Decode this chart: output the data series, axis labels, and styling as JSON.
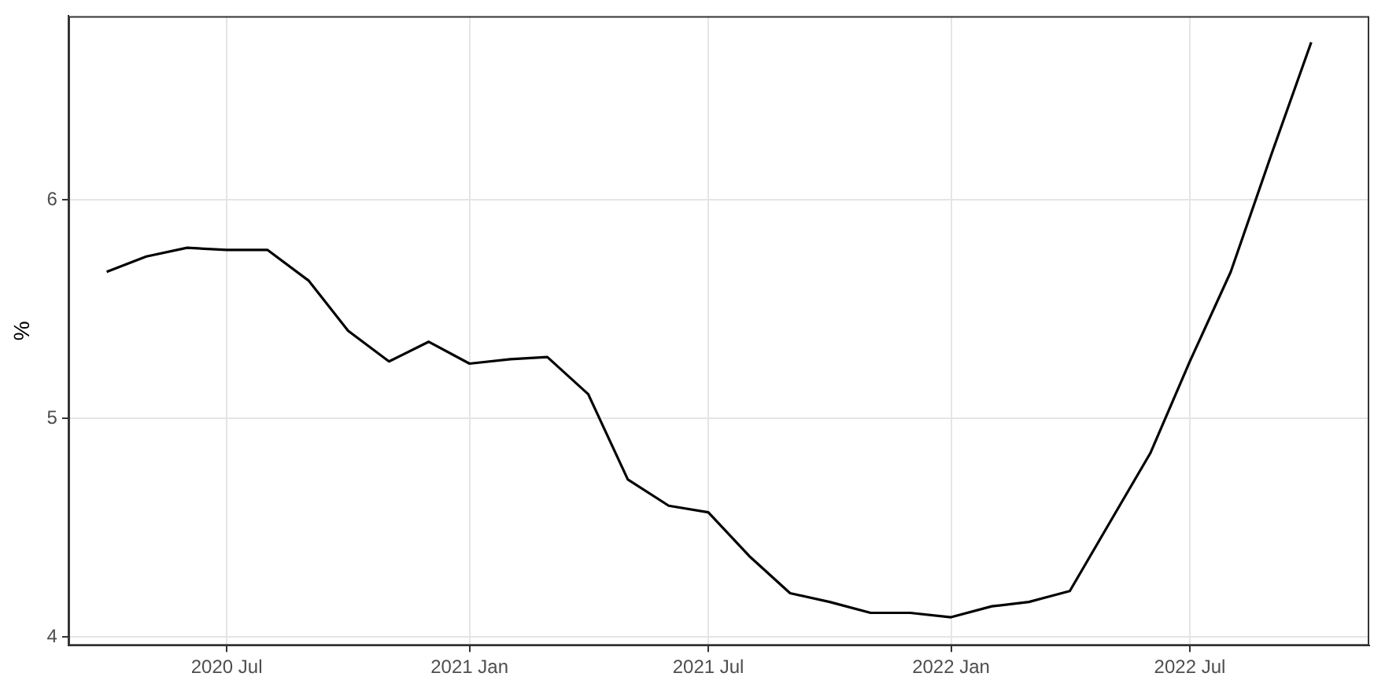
{
  "chart_data": {
    "type": "line",
    "ylabel": "%",
    "x": [
      "2020-04",
      "2020-05",
      "2020-06",
      "2020-07",
      "2020-08",
      "2020-09",
      "2020-10",
      "2020-11",
      "2020-12",
      "2021-01",
      "2021-02",
      "2021-03",
      "2021-04",
      "2021-05",
      "2021-06",
      "2021-07",
      "2021-08",
      "2021-09",
      "2021-10",
      "2021-11",
      "2021-12",
      "2022-01",
      "2022-02",
      "2022-03",
      "2022-04",
      "2022-05",
      "2022-06",
      "2022-07",
      "2022-08",
      "2022-09",
      "2022-10"
    ],
    "series": [
      {
        "color": "#000000",
        "values": [
          5.67,
          5.74,
          5.78,
          5.77,
          5.77,
          5.63,
          5.4,
          5.26,
          5.35,
          5.25,
          5.27,
          5.28,
          5.11,
          4.72,
          4.6,
          4.57,
          4.37,
          4.2,
          4.16,
          4.11,
          4.11,
          4.09,
          4.14,
          4.16,
          4.21,
          4.52,
          4.84,
          5.26,
          5.67,
          6.21,
          6.72
        ]
      }
    ],
    "xlim": [
      "2020-03-03",
      "2022-11-14"
    ],
    "xticks": [
      {
        "value": "2020-07",
        "label": "2020 Jul"
      },
      {
        "value": "2021-01",
        "label": "2021 Jan"
      },
      {
        "value": "2021-07",
        "label": "2021 Jul"
      },
      {
        "value": "2022-01",
        "label": "2022 Jan"
      },
      {
        "value": "2022-07",
        "label": "2022 Jul"
      }
    ],
    "ylim": [
      3.96,
      6.84
    ],
    "yticks": [
      4,
      5,
      6
    ],
    "grid": true,
    "legend": false,
    "marker": "none",
    "line_style": "solid"
  }
}
